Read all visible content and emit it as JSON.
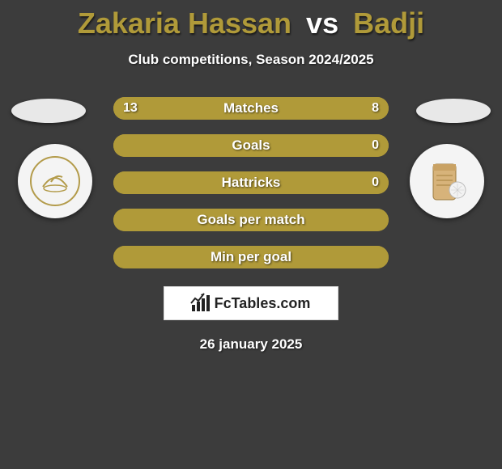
{
  "header": {
    "player1": "Zakaria Hassan",
    "vs": "vs",
    "player2": "Badji",
    "subtitle": "Club competitions, Season 2024/2025"
  },
  "colors": {
    "p1": "#b09a39",
    "p2": "#b09a39",
    "pill_left": "#e8e8e8",
    "pill_right": "#e8e8e8"
  },
  "bars": [
    {
      "label": "Matches",
      "left": "13",
      "right": "8",
      "leftPct": 62,
      "rightPct": 38
    },
    {
      "label": "Goals",
      "left": "",
      "right": "0",
      "leftPct": 100,
      "rightPct": 0
    },
    {
      "label": "Hattricks",
      "left": "",
      "right": "0",
      "leftPct": 100,
      "rightPct": 0
    },
    {
      "label": "Goals per match",
      "left": "",
      "right": "",
      "leftPct": 100,
      "rightPct": 0
    },
    {
      "label": "Min per goal",
      "left": "",
      "right": "",
      "leftPct": 100,
      "rightPct": 0
    }
  ],
  "footer": {
    "brand": "FcTables.com",
    "date": "26 january 2025"
  }
}
